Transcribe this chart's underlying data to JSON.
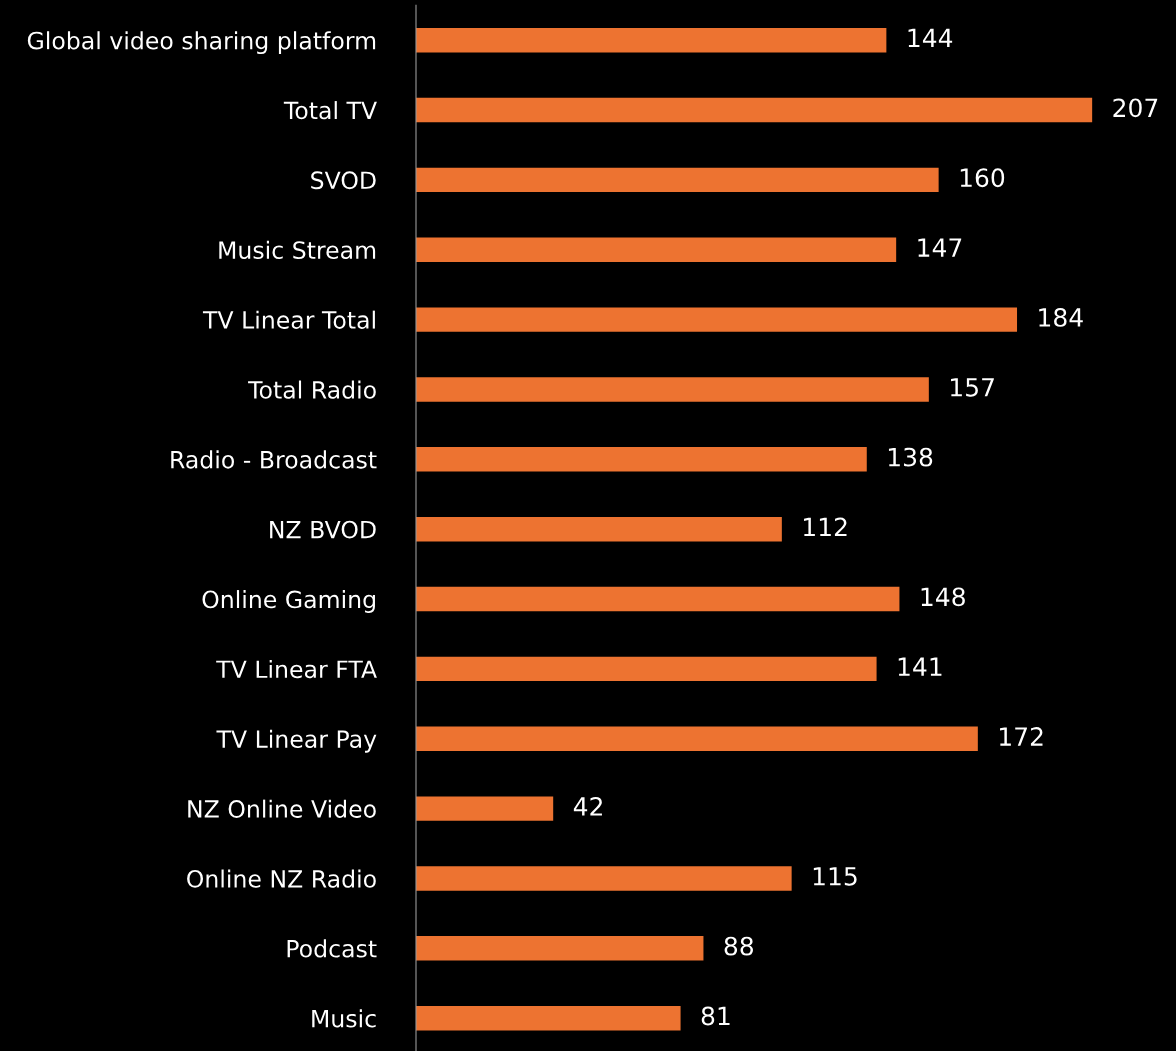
{
  "chart_data": {
    "type": "bar",
    "orientation": "horizontal",
    "categories": [
      "Global video sharing platform",
      "Total TV",
      "SVOD",
      "Music Stream",
      "TV Linear Total",
      "Total Radio",
      "Radio - Broadcast",
      "NZ BVOD",
      "Online Gaming",
      "TV Linear FTA",
      "TV Linear Pay",
      "NZ Online Video",
      "Online NZ Radio",
      "Podcast",
      "Music"
    ],
    "values": [
      144,
      207,
      160,
      147,
      184,
      157,
      138,
      112,
      148,
      141,
      172,
      42,
      115,
      88,
      81
    ],
    "color": "#ed7331",
    "data_labels": true,
    "grid": false,
    "legend": false,
    "tick_labels": "y"
  }
}
